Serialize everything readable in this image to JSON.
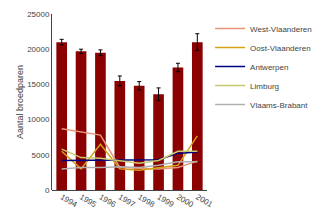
{
  "chart_data": {
    "type": "bar",
    "categories": [
      "1994",
      "1995",
      "1996",
      "1997",
      "1998",
      "1999",
      "2000",
      "2001"
    ],
    "series": [
      {
        "type": "bar",
        "color": "#8B0000",
        "values": [
          21000,
          19700,
          19500,
          15500,
          14800,
          13600,
          17400,
          21000
        ],
        "errors": [
          400,
          300,
          400,
          700,
          600,
          900,
          600,
          1200
        ]
      },
      {
        "name": "West-Vlaanderen",
        "type": "line",
        "color": "#E8967A",
        "values": [
          8700,
          8200,
          7800,
          3200,
          3100,
          3000,
          3200,
          4100
        ]
      },
      {
        "name": "Oost-Vlaanderen",
        "type": "line",
        "color": "#D4A017",
        "values": [
          5500,
          3000,
          6500,
          3000,
          2800,
          3100,
          3500,
          7700
        ]
      },
      {
        "name": "Antwerpen",
        "type": "line",
        "color": "#000080",
        "values": [
          4200,
          4200,
          4200,
          4300,
          4200,
          4300,
          5200,
          5400
        ]
      },
      {
        "name": "Limburg",
        "type": "line",
        "color": "#C8C86E",
        "values": [
          5800,
          4600,
          4500,
          4200,
          3800,
          4200,
          5500,
          5500
        ]
      },
      {
        "name": "Vlaams-Brabant",
        "type": "line",
        "color": "#B0B0B0",
        "values": [
          3000,
          3200,
          3200,
          3300,
          3200,
          3500,
          4000,
          4000
        ]
      }
    ],
    "ylabel": "Aantal broedparen",
    "ylim": [
      0,
      25000
    ],
    "yticks": [
      0,
      5000,
      10000,
      15000,
      20000,
      25000
    ],
    "grid": false,
    "legend": "upper right"
  }
}
